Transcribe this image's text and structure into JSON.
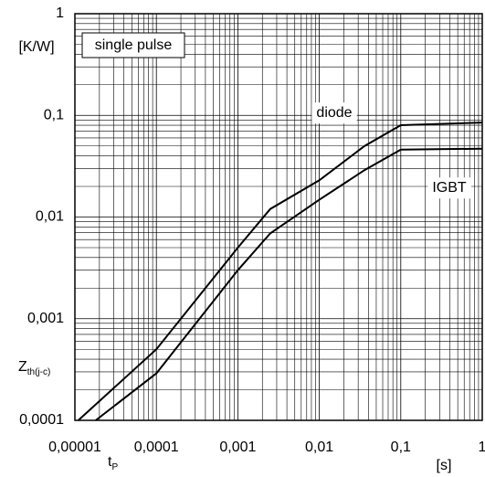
{
  "chart_data": {
    "type": "line",
    "xlog": true,
    "ylog": true,
    "grid": true,
    "minor_grid": true,
    "xlim": [
      1e-05,
      1
    ],
    "ylim": [
      0.0001,
      1
    ],
    "xticks": [
      {
        "value": 1e-05,
        "label": "0,00001"
      },
      {
        "value": 0.0001,
        "label": "0,0001"
      },
      {
        "value": 0.001,
        "label": "0,001"
      },
      {
        "value": 0.01,
        "label": "0,01"
      },
      {
        "value": 0.1,
        "label": "0,1"
      },
      1
    ],
    "yticks": [
      {
        "value": 0.0001,
        "label": "0,0001"
      },
      {
        "value": 0.001,
        "label": "0,001"
      },
      {
        "value": 0.01,
        "label": "0,01"
      },
      {
        "value": 0.1,
        "label": "0,1"
      },
      1
    ],
    "y_unit": "[K/W]",
    "y_label": {
      "main": "Z",
      "sub": "th(j-c)"
    },
    "x_label": {
      "main": "t",
      "sub": "P"
    },
    "x_unit": "[s]",
    "annotation": "single pulse",
    "series": [
      {
        "name": "diode",
        "color": "#000000",
        "x": [
          1.1e-05,
          0.0001,
          0.001,
          0.0025,
          0.01,
          0.036,
          0.1,
          1
        ],
        "values": [
          0.0001,
          0.0005,
          0.005,
          0.012,
          0.023,
          0.05,
          0.08,
          0.085
        ]
      },
      {
        "name": "IGBT",
        "color": "#000000",
        "x": [
          1.8e-05,
          0.0001,
          0.001,
          0.0025,
          0.01,
          0.036,
          0.1,
          1
        ],
        "values": [
          0.0001,
          0.00029,
          0.003,
          0.0069,
          0.0148,
          0.029,
          0.046,
          0.047
        ]
      }
    ]
  }
}
